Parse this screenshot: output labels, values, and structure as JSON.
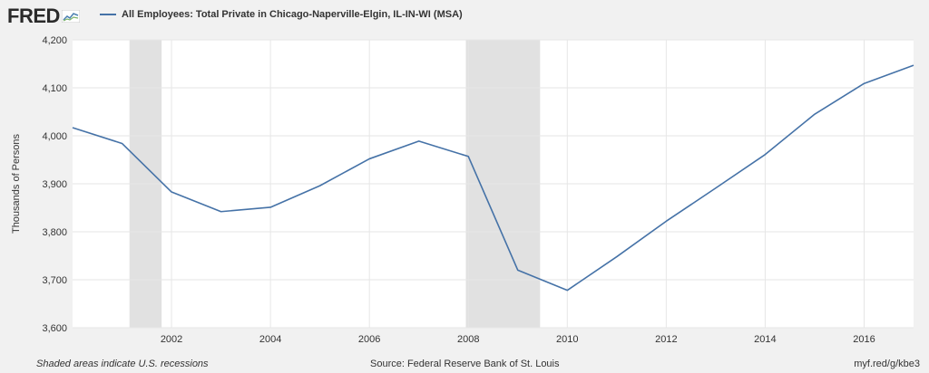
{
  "header": {
    "logo_text": "FRED",
    "logo_icon": "line-graph-icon",
    "legend_label": "All Employees: Total Private in Chicago-Naperville-Elgin, IL-IN-WI (MSA)",
    "legend_color": "#4572a7"
  },
  "footer": {
    "note": "Shaded areas indicate U.S. recessions",
    "source": "Source: Federal Reserve Bank of St. Louis",
    "link": "myf.red/g/kbe3"
  },
  "chart_data": {
    "type": "line",
    "title": "",
    "xlabel": "",
    "ylabel": "Thousands of Persons",
    "xlim": [
      2000,
      2017
    ],
    "ylim": [
      3600,
      4200
    ],
    "yticks": [
      3600,
      3700,
      3800,
      3900,
      4000,
      4100,
      4200
    ],
    "ytick_labels": [
      "3,600",
      "3,700",
      "3,800",
      "3,900",
      "4,000",
      "4,100",
      "4,200"
    ],
    "xticks": [
      2002,
      2004,
      2006,
      2008,
      2010,
      2012,
      2014,
      2016
    ],
    "xtick_labels": [
      "2002",
      "2004",
      "2006",
      "2008",
      "2010",
      "2012",
      "2014",
      "2016"
    ],
    "grid": true,
    "recessions": [
      [
        2001.15,
        2001.8
      ],
      [
        2007.95,
        2009.45
      ]
    ],
    "recession_color": "#e1e1e1",
    "line_color": "#4572a7",
    "series": [
      {
        "name": "All Employees: Total Private in Chicago-Naperville-Elgin, IL-IN-WI (MSA)",
        "x": [
          2000,
          2001,
          2002,
          2003,
          2004,
          2005,
          2006,
          2007,
          2008,
          2009,
          2010,
          2011,
          2012,
          2013,
          2014,
          2015,
          2016,
          2017
        ],
        "y": [
          4017,
          3984,
          3883,
          3842,
          3851,
          3896,
          3952,
          3989,
          3957,
          3720,
          3678,
          3748,
          3822,
          3891,
          3961,
          4045,
          4109,
          4147
        ]
      }
    ]
  }
}
